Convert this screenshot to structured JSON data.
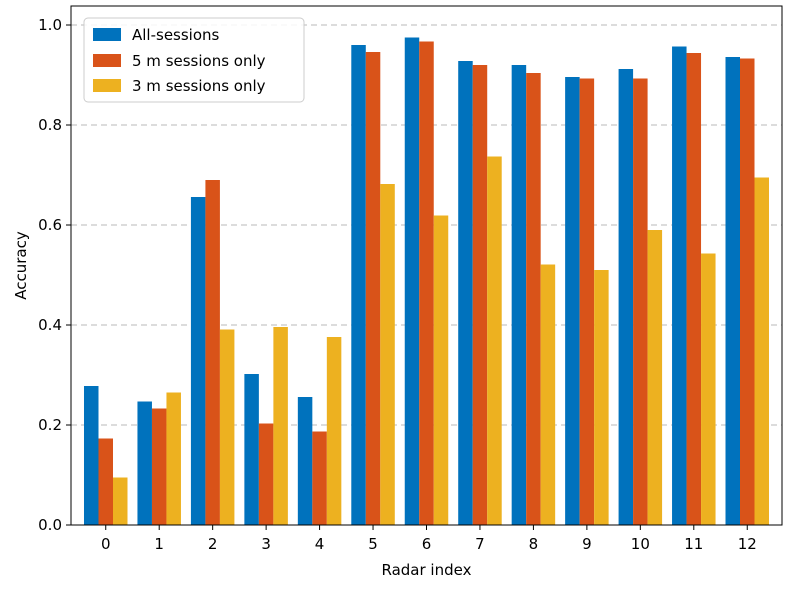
{
  "chart_data": {
    "type": "bar",
    "title": "",
    "xlabel": "Radar index",
    "ylabel": "Accuracy",
    "ylim": [
      0.0,
      1.0
    ],
    "yticks": [
      "0.0",
      "0.2",
      "0.4",
      "0.6",
      "0.8",
      "1.0"
    ],
    "grid": "horizontal dashed",
    "legend_position": "top-left",
    "categories": [
      "0",
      "1",
      "2",
      "3",
      "4",
      "5",
      "6",
      "7",
      "8",
      "9",
      "10",
      "11",
      "12"
    ],
    "series": [
      {
        "name": "All-sessions",
        "color": "#0072BD",
        "values": [
          0.278,
          0.247,
          0.656,
          0.302,
          0.256,
          0.96,
          0.975,
          0.928,
          0.92,
          0.896,
          0.912,
          0.957,
          0.936
        ]
      },
      {
        "name": "5 m sessions only",
        "color": "#D95319",
        "values": [
          0.173,
          0.233,
          0.69,
          0.203,
          0.187,
          0.946,
          0.967,
          0.92,
          0.904,
          0.893,
          0.893,
          0.944,
          0.933
        ]
      },
      {
        "name": "3 m sessions only",
        "color": "#EDB120",
        "values": [
          0.095,
          0.265,
          0.391,
          0.396,
          0.376,
          0.682,
          0.619,
          0.737,
          0.521,
          0.51,
          0.59,
          0.543,
          0.695
        ]
      }
    ]
  }
}
